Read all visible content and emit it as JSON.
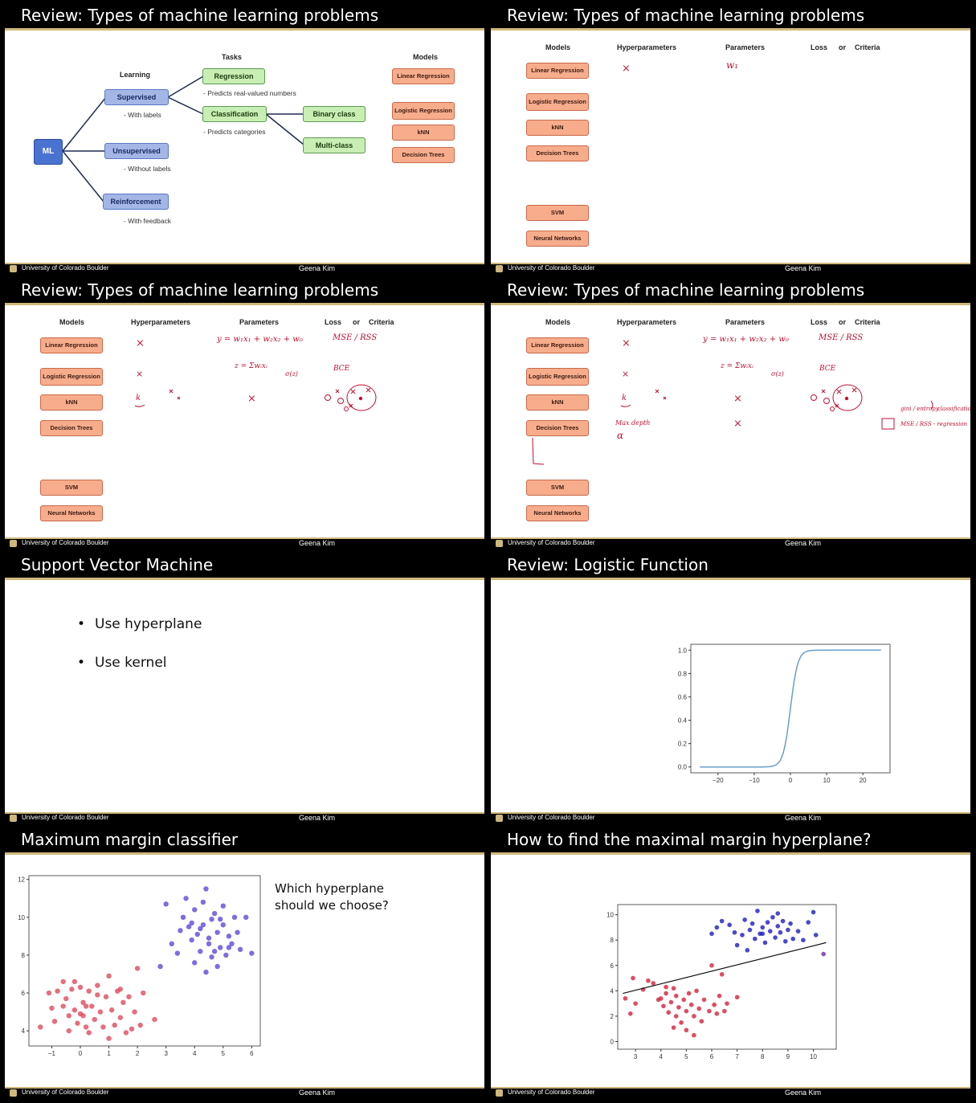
{
  "footer": {
    "university": "University of Colorado Boulder",
    "author": "Geena Kim"
  },
  "colors": {
    "title_bg": "#000000",
    "accent": "#cfb87c",
    "supervised": "#a4b6e6",
    "task": "#c8eeb4",
    "model": "#f7ad8c",
    "handwriting": "#c01030"
  },
  "slide1": {
    "title": "Review: Types of machine learning problems",
    "ml": "ML",
    "learning_header": "Learning",
    "tasks_header": "Tasks",
    "models_header": "Models",
    "supervised": "Supervised",
    "supervised_note": "- With labels",
    "unsupervised": "Unsupervised",
    "unsupervised_note": "- Without labels",
    "reinforcement": "Reinforcement",
    "reinforcement_note": "- With feedback",
    "regression": "Regression",
    "regression_note": "- Predicts real-valued numbers",
    "classification": "Classification",
    "classification_note": "- Predicts categories",
    "binary": "Binary class",
    "multi": "Multi-class",
    "models": [
      "Linear Regression",
      "Logistic Regression",
      "kNN",
      "Decision Trees"
    ]
  },
  "table_headers": {
    "models": "Models",
    "hyper": "Hyperparameters",
    "params": "Parameters",
    "loss": "Loss",
    "or": "or",
    "criteria": "Criteria"
  },
  "model_list": [
    "Linear Regression",
    "Logistic Regression",
    "kNN",
    "Decision Trees",
    "SVM",
    "Neural Networks"
  ],
  "slide2": {
    "title": "Review: Types of machine learning problems",
    "hw": {
      "lr_hyper": "×",
      "lr_param": "w₁"
    }
  },
  "slide3": {
    "title": "Review: Types of machine learning problems",
    "hw": {
      "lr_hyper": "×",
      "lr_param": "y = w₁x₁ + w₂x₂ + w₀",
      "lr_loss": "MSE / RSS",
      "log_hyper": "×",
      "log_param": "z = Σwᵢxᵢ",
      "log_sigma": "σ(z)",
      "log_loss": "BCE",
      "knn_hyper": "k",
      "knn_param": "×"
    }
  },
  "slide4": {
    "title": "Review: Types of machine learning problems",
    "hw": {
      "lr_hyper": "×",
      "lr_param": "y = w₁x₁ + w₂x₂ + w₀",
      "lr_loss": "MSE / RSS",
      "log_hyper": "×",
      "log_param": "z = Σwᵢxᵢ",
      "log_sigma": "σ(z)",
      "log_loss": "BCE",
      "knn_hyper": "k",
      "knn_param": "×",
      "dt_hyper": "Max depth",
      "dt_hyper2": "α",
      "dt_param": "×",
      "dt_loss1": "gini / entropy",
      "dt_loss1b": "classification",
      "dt_loss2": "MSE / RSS - regression"
    }
  },
  "slide5": {
    "title": "Support Vector Machine",
    "bullets": [
      "Use hyperplane",
      "Use kernel"
    ]
  },
  "slide6": {
    "title": "Review: Logistic Function",
    "chart_data": {
      "type": "line",
      "x_range": [
        -25,
        25
      ],
      "ylim": [
        0,
        1
      ],
      "function": "sigmoid",
      "xticks": [
        "−20",
        "−10",
        "0",
        "10",
        "20"
      ],
      "yticks": [
        "0.0",
        "0.2",
        "0.4",
        "0.6",
        "0.8",
        "1.0"
      ],
      "color": "#6a9ec8"
    }
  },
  "slide7": {
    "title": "Maximum margin classifier",
    "question": "Which hyperplane should we choose?",
    "chart_data": {
      "type": "scatter",
      "xlim": [
        -1.8,
        6.3
      ],
      "ylim": [
        3.2,
        12.2
      ],
      "xticks": [
        "−1",
        "0",
        "1",
        "2",
        "3",
        "4",
        "5",
        "6"
      ],
      "yticks": [
        "4",
        "6",
        "8",
        "10",
        "12"
      ],
      "series": [
        {
          "color": "#e04a5c",
          "points": [
            [
              -1.4,
              4.2
            ],
            [
              -1.0,
              5.2
            ],
            [
              -0.9,
              4.5
            ],
            [
              -0.8,
              6.1
            ],
            [
              -0.6,
              6.6
            ],
            [
              -0.5,
              5.7
            ],
            [
              -0.4,
              4.8
            ],
            [
              -0.3,
              6.2
            ],
            [
              -0.2,
              5.1
            ],
            [
              -0.1,
              4.4
            ],
            [
              0,
              6.3
            ],
            [
              0.1,
              5.5
            ],
            [
              0.1,
              4.8
            ],
            [
              0.2,
              4.2
            ],
            [
              0.3,
              6.1
            ],
            [
              0.4,
              5.3
            ],
            [
              0.5,
              4.6
            ],
            [
              0.6,
              6.4
            ],
            [
              0.7,
              5.0
            ],
            [
              0.8,
              4.2
            ],
            [
              0.9,
              5.8
            ],
            [
              1.0,
              6.9
            ],
            [
              1.1,
              5.1
            ],
            [
              1.2,
              4.3
            ],
            [
              1.3,
              6.1
            ],
            [
              1.4,
              4.7
            ],
            [
              1.5,
              5.5
            ],
            [
              1.6,
              3.9
            ],
            [
              1.7,
              5.8
            ],
            [
              1.8,
              4.1
            ],
            [
              1.9,
              5.0
            ],
            [
              2.0,
              7.3
            ],
            [
              2.1,
              4.3
            ],
            [
              2.2,
              6.0
            ],
            [
              2.6,
              4.6
            ],
            [
              -0.6,
              5.3
            ],
            [
              -0.2,
              6.6
            ],
            [
              0.0,
              4.9
            ],
            [
              0.3,
              3.9
            ],
            [
              0.6,
              5.9
            ],
            [
              1.0,
              3.6
            ],
            [
              1.4,
              6.2
            ],
            [
              -1.1,
              6.0
            ],
            [
              -0.4,
              4.0
            ],
            [
              0.2,
              5.3
            ]
          ]
        },
        {
          "color": "#5b4ad8",
          "points": [
            [
              3.0,
              10.7
            ],
            [
              3.2,
              8.6
            ],
            [
              3.4,
              8.1
            ],
            [
              3.5,
              9.3
            ],
            [
              3.6,
              10.0
            ],
            [
              3.7,
              11.0
            ],
            [
              3.8,
              9.5
            ],
            [
              3.9,
              8.8
            ],
            [
              4.0,
              10.4
            ],
            [
              4.0,
              7.6
            ],
            [
              4.1,
              9.1
            ],
            [
              4.2,
              8.2
            ],
            [
              4.3,
              10.8
            ],
            [
              4.3,
              9.6
            ],
            [
              4.4,
              11.5
            ],
            [
              4.4,
              7.1
            ],
            [
              4.5,
              8.6
            ],
            [
              4.6,
              9.9
            ],
            [
              4.6,
              7.9
            ],
            [
              4.7,
              10.2
            ],
            [
              4.8,
              9.2
            ],
            [
              4.8,
              7.4
            ],
            [
              4.9,
              8.4
            ],
            [
              5.0,
              10.6
            ],
            [
              5.0,
              9.6
            ],
            [
              5.1,
              8.0
            ],
            [
              5.2,
              9.0
            ],
            [
              5.3,
              8.6
            ],
            [
              5.4,
              10.0
            ],
            [
              5.5,
              9.2
            ],
            [
              5.6,
              8.3
            ],
            [
              5.8,
              10.0
            ],
            [
              6.0,
              8.1
            ],
            [
              4.2,
              9.4
            ],
            [
              4.5,
              8.9
            ],
            [
              4.9,
              9.9
            ],
            [
              5.2,
              8.4
            ],
            [
              3.9,
              9.7
            ],
            [
              4.7,
              8.2
            ],
            [
              2.8,
              7.4
            ]
          ]
        }
      ]
    }
  },
  "slide8": {
    "title": "How to find the maximal margin hyperplane?",
    "chart_data": {
      "type": "scatter",
      "xlim": [
        2.3,
        10.9
      ],
      "ylim": [
        -0.6,
        10.8
      ],
      "xticks": [
        "3",
        "4",
        "5",
        "6",
        "7",
        "8",
        "9",
        "10"
      ],
      "yticks": [
        "0",
        "2",
        "4",
        "6",
        "8",
        "10"
      ],
      "line": [
        [
          2.5,
          3.8
        ],
        [
          10.5,
          7.8
        ]
      ],
      "series": [
        {
          "color": "#d4203a",
          "points": [
            [
              2.6,
              3.4
            ],
            [
              2.8,
              2.2
            ],
            [
              2.9,
              5.0
            ],
            [
              3.0,
              3.0
            ],
            [
              3.3,
              4.1
            ],
            [
              3.5,
              4.8
            ],
            [
              3.7,
              4.6
            ],
            [
              4.0,
              3.4
            ],
            [
              4.1,
              2.8
            ],
            [
              4.2,
              3.8
            ],
            [
              4.3,
              2.3
            ],
            [
              4.4,
              3.1
            ],
            [
              4.5,
              4.2
            ],
            [
              4.6,
              2.0
            ],
            [
              4.6,
              3.6
            ],
            [
              4.7,
              2.7
            ],
            [
              4.8,
              1.5
            ],
            [
              4.9,
              3.3
            ],
            [
              5.0,
              2.4
            ],
            [
              5.0,
              0.9
            ],
            [
              5.1,
              3.8
            ],
            [
              5.2,
              2.9
            ],
            [
              5.3,
              2.0
            ],
            [
              5.4,
              4.0
            ],
            [
              5.5,
              2.6
            ],
            [
              5.6,
              1.6
            ],
            [
              5.7,
              3.3
            ],
            [
              5.9,
              2.4
            ],
            [
              6.0,
              6.0
            ],
            [
              6.1,
              2.9
            ],
            [
              6.2,
              2.2
            ],
            [
              6.3,
              3.6
            ],
            [
              6.4,
              5.3
            ],
            [
              6.5,
              2.4
            ],
            [
              6.6,
              3.0
            ],
            [
              7.0,
              3.5
            ],
            [
              4.5,
              1.1
            ],
            [
              5.3,
              0.5
            ],
            [
              4.2,
              4.3
            ],
            [
              3.9,
              3.3
            ]
          ]
        },
        {
          "color": "#1c1ac0",
          "points": [
            [
              6.0,
              8.5
            ],
            [
              6.2,
              9.0
            ],
            [
              6.4,
              9.5
            ],
            [
              6.7,
              9.2
            ],
            [
              6.9,
              8.6
            ],
            [
              7.0,
              7.6
            ],
            [
              7.2,
              8.4
            ],
            [
              7.3,
              9.6
            ],
            [
              7.5,
              8.8
            ],
            [
              7.6,
              9.3
            ],
            [
              7.7,
              8.1
            ],
            [
              7.8,
              10.3
            ],
            [
              7.9,
              8.5
            ],
            [
              8.0,
              9.0
            ],
            [
              8.1,
              7.8
            ],
            [
              8.2,
              9.4
            ],
            [
              8.3,
              8.7
            ],
            [
              8.4,
              9.8
            ],
            [
              8.5,
              8.2
            ],
            [
              8.6,
              9.1
            ],
            [
              8.7,
              8.6
            ],
            [
              8.8,
              9.5
            ],
            [
              8.9,
              7.9
            ],
            [
              9.0,
              8.8
            ],
            [
              9.1,
              9.3
            ],
            [
              9.2,
              8.1
            ],
            [
              9.4,
              8.7
            ],
            [
              9.6,
              8.0
            ],
            [
              9.8,
              9.4
            ],
            [
              10.0,
              10.2
            ],
            [
              10.1,
              8.4
            ],
            [
              8.6,
              10.1
            ],
            [
              7.4,
              7.2
            ],
            [
              8.0,
              8.5
            ]
          ]
        },
        {
          "color": "#6a2a9c",
          "points": [
            [
              10.4,
              6.9
            ]
          ]
        }
      ]
    }
  }
}
